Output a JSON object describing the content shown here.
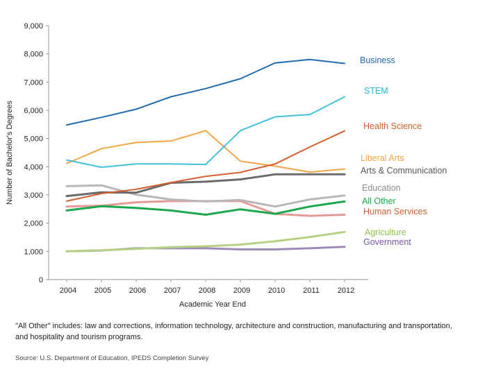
{
  "chart_data": {
    "type": "line",
    "ylabel": "Number of Bachelor's Degrees",
    "xlabel": "Academic Year End",
    "x": [
      "2004",
      "2005",
      "2006",
      "2007",
      "2008",
      "2009",
      "2010",
      "2011",
      "2012"
    ],
    "ylim": [
      0,
      9000
    ],
    "yticks": [
      "0",
      "1,000",
      "2,000",
      "3,000",
      "4,000",
      "5,000",
      "6,000",
      "7,000",
      "8,000",
      "9,000"
    ],
    "grid": false,
    "legend": "right",
    "series": [
      {
        "name": "Business",
        "color": "#1f6bb0",
        "values": [
          5480,
          5750,
          6040,
          6480,
          6770,
          7120,
          7680,
          7800,
          7660
        ]
      },
      {
        "name": "STEM",
        "color": "#41c1db",
        "values": [
          4240,
          3980,
          4100,
          4100,
          4080,
          5280,
          5770,
          5850,
          6480
        ]
      },
      {
        "name": "Health Science",
        "color": "#d45f2e",
        "values": [
          2780,
          3050,
          3200,
          3440,
          3660,
          3800,
          4100,
          4700,
          5270
        ]
      },
      {
        "name": "Liberal Arts",
        "color": "#f3a548",
        "values": [
          4120,
          4640,
          4860,
          4910,
          5280,
          4200,
          4020,
          3810,
          3920
        ]
      },
      {
        "name": "Arts & Communication",
        "color": "#6b6b6b",
        "values": [
          2960,
          3090,
          3080,
          3430,
          3470,
          3550,
          3730,
          3730,
          3730
        ]
      },
      {
        "name": "Education",
        "color": "#b7b7b7",
        "values": [
          3310,
          3340,
          3010,
          2840,
          2770,
          2820,
          2590,
          2840,
          2980
        ]
      },
      {
        "name": "All Other",
        "color": "#1ba84c",
        "values": [
          2450,
          2600,
          2540,
          2450,
          2300,
          2490,
          2330,
          2590,
          2770
        ]
      },
      {
        "name": "Human Services",
        "color": "#e69a97",
        "values": [
          2590,
          2620,
          2740,
          2780,
          2780,
          2780,
          2330,
          2260,
          2300
        ]
      },
      {
        "name": "Agriculture",
        "color": "#b6d184",
        "values": [
          1000,
          1040,
          1090,
          1150,
          1180,
          1240,
          1360,
          1510,
          1690
        ]
      },
      {
        "name": "Government",
        "color": "#9c8ab7",
        "values": [
          1000,
          1030,
          1110,
          1110,
          1110,
          1070,
          1070,
          1110,
          1160
        ]
      }
    ],
    "legend_colors": {
      "Business": "#1f6bb0",
      "STEM": "#27b5d2",
      "Health Science": "#d45f2e",
      "Liberal Arts": "#f3a548",
      "Arts & Communication": "#555555",
      "Education": "#8a8a8a",
      "All Other": "#1ba84c",
      "Human Services": "#d45f2e",
      "Agriculture": "#8dbf4a",
      "Government": "#7a52a6"
    }
  },
  "footnote": "\"All Other\" includes: law and corrections, information technology, architecture and construction, manufacturing and transportation, and hospitality and tourism programs.",
  "source": "Source: U.S. Department of Education, IPEDS Completion Survey"
}
